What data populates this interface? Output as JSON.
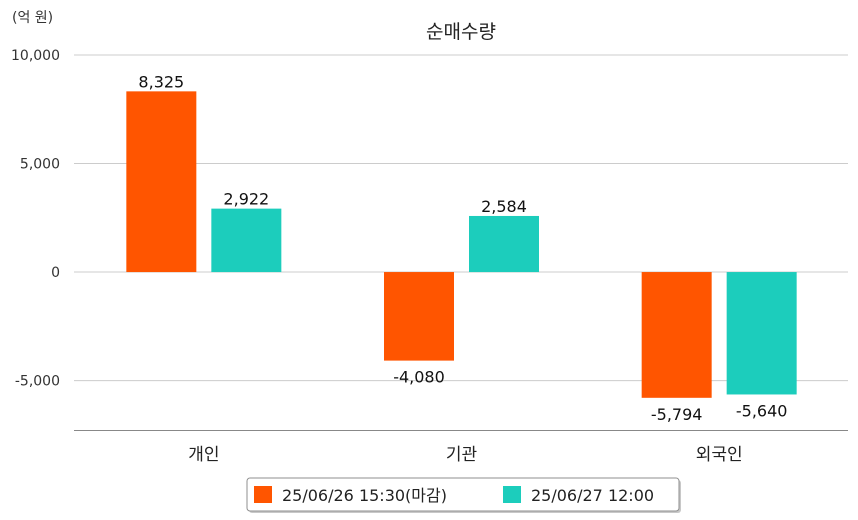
{
  "chart_data": {
    "type": "bar",
    "title": "순매수량",
    "unit_label": "(억 원)",
    "categories": [
      "개인",
      "기관",
      "외국인"
    ],
    "series": [
      {
        "name": "25/06/26 15:30(마감)",
        "color": "#FF5500",
        "values": [
          8325,
          -4080,
          -5794
        ],
        "labels": [
          "8,325",
          "-4,080",
          "-5,794"
        ]
      },
      {
        "name": "25/06/27 12:00",
        "color": "#1CCDBC",
        "values": [
          2922,
          2584,
          -5640
        ],
        "labels": [
          "2,922",
          "2,584",
          "-5,640"
        ]
      }
    ],
    "ylim": [
      -7300,
      10000
    ],
    "yticks": [
      -5000,
      0,
      5000,
      10000
    ],
    "ytick_labels": [
      "-5,000",
      "0",
      "5,000",
      "10,000"
    ],
    "grid": true,
    "legend_position": "bottom-center"
  }
}
